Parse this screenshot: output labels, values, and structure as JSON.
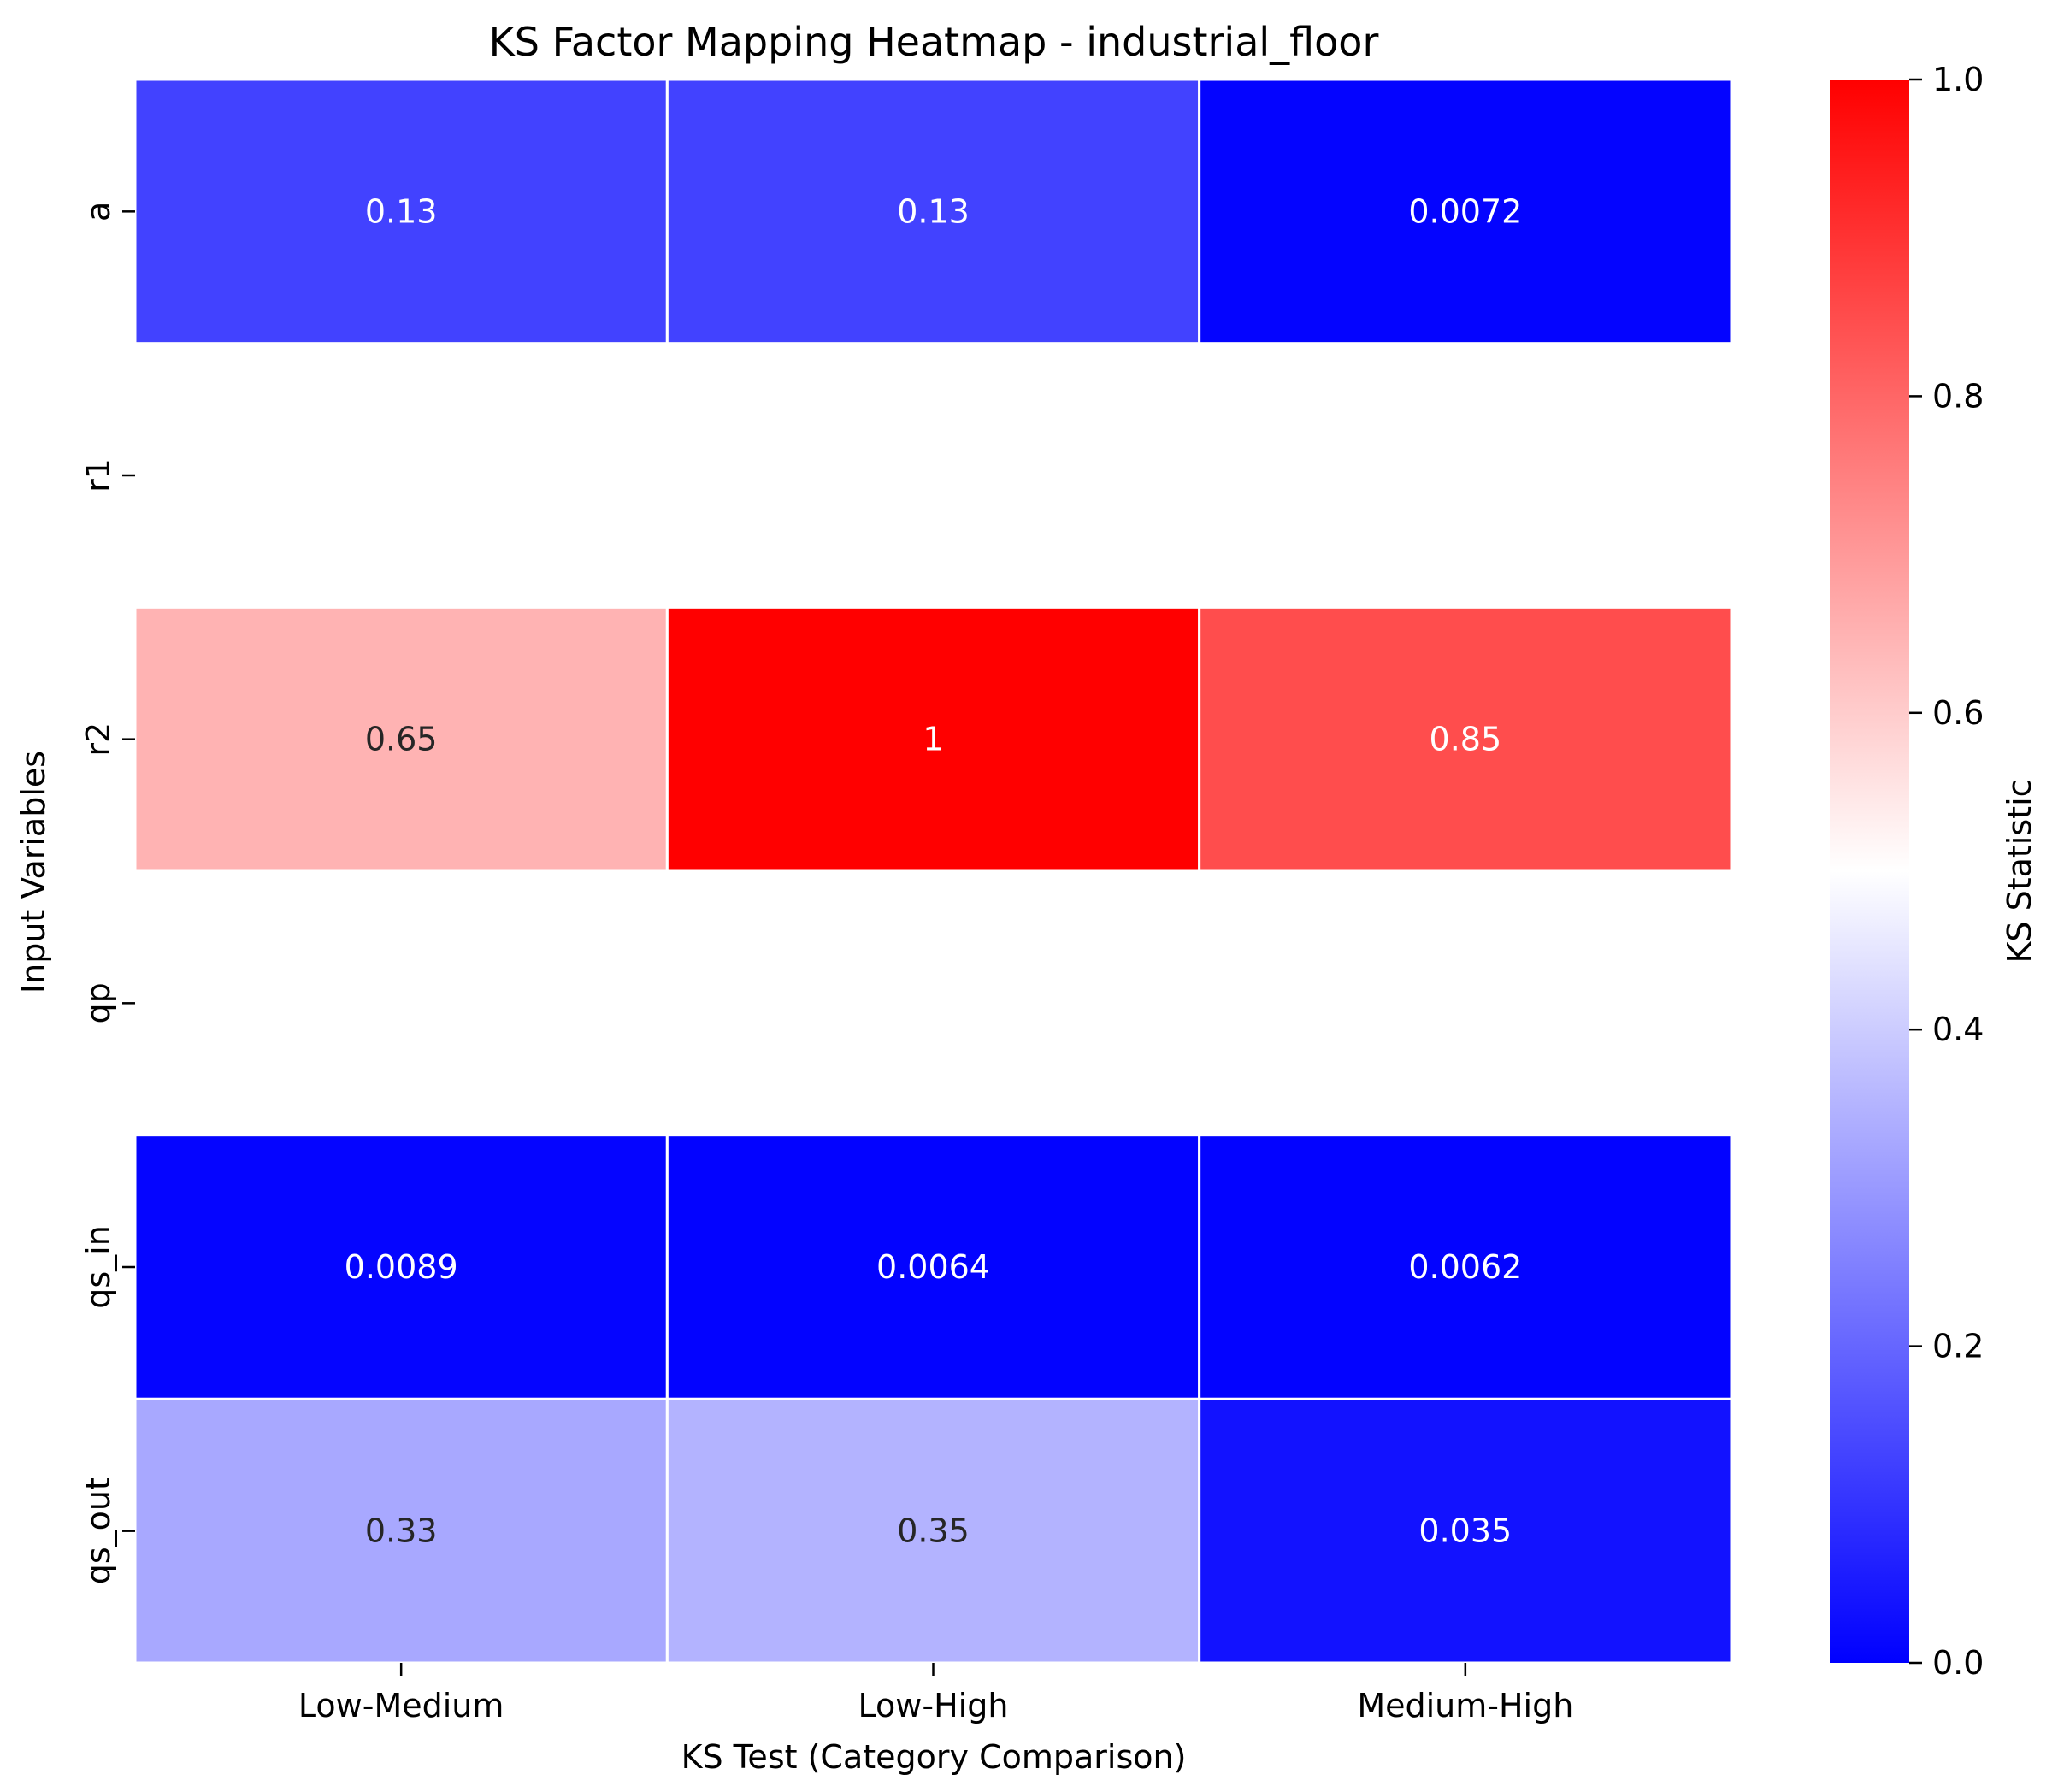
{
  "chart_data": {
    "type": "heatmap",
    "title": "KS Factor Mapping Heatmap - industrial_floor",
    "xlabel": "KS Test (Category Comparison)",
    "ylabel": "Input Variables",
    "x_categories": [
      "Low-Medium",
      "Low-High",
      "Medium-High"
    ],
    "y_categories": [
      "a",
      "r1",
      "r2",
      "qp",
      "qs_in",
      "qs_out"
    ],
    "values": [
      [
        0.13,
        0.13,
        0.0072
      ],
      [
        null,
        null,
        null
      ],
      [
        0.65,
        1,
        0.85
      ],
      [
        null,
        null,
        null
      ],
      [
        0.0089,
        0.0064,
        0.0062
      ],
      [
        0.33,
        0.35,
        0.035
      ]
    ],
    "value_labels": [
      [
        "0.13",
        "0.13",
        "0.0072"
      ],
      [
        "",
        "",
        ""
      ],
      [
        "0.65",
        "1",
        "0.85"
      ],
      [
        "",
        "",
        ""
      ],
      [
        "0.0089",
        "0.0064",
        "0.0062"
      ],
      [
        "0.33",
        "0.35",
        "0.035"
      ]
    ],
    "colorbar": {
      "label": "KS Statistic",
      "range": [
        0,
        1
      ],
      "ticks": [
        "0.0",
        "0.2",
        "0.4",
        "0.6",
        "0.8",
        "1.0"
      ],
      "colormap": [
        "#0000ff",
        "#ffffff",
        "#ff0000"
      ]
    },
    "grid": false,
    "legend": "colorbar-right"
  }
}
